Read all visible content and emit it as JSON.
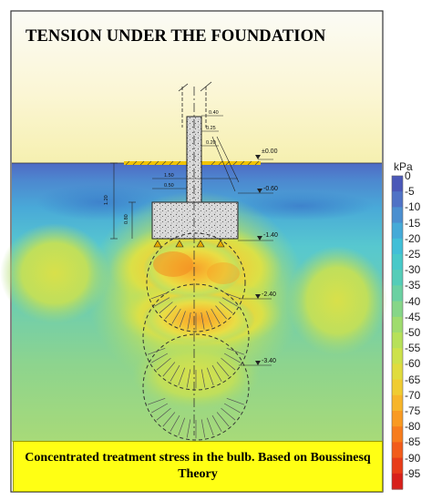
{
  "title": "TENSION UNDER THE FOUNDATION",
  "caption": "Concentrated treatment stress in the bulb. Based on Boussinesq Theory",
  "legend": {
    "unit": "kPa",
    "ticks": [
      "0",
      "-5",
      "-10",
      "-15",
      "-20",
      "-25",
      "-30",
      "-35",
      "-40",
      "-45",
      "-50",
      "-55",
      "-60",
      "-65",
      "-70",
      "-75",
      "-80",
      "-85",
      "-90",
      "-95"
    ],
    "colors": [
      "#4a58b8",
      "#4f72c6",
      "#4b8fd0",
      "#45aad8",
      "#41bfd7",
      "#47c9c9",
      "#55cdb8",
      "#6bd1a2",
      "#86d688",
      "#9fdc6e",
      "#b7e159",
      "#cde24a",
      "#e0dc3e",
      "#f0cc32",
      "#f7b52a",
      "#f99a22",
      "#f77c1d",
      "#f25c1b",
      "#e83c19",
      "#d8201a"
    ]
  },
  "levels": [
    "±0.00",
    "-0.60",
    "-1.40",
    "-2.40",
    "-3.40"
  ],
  "dimensions": [
    "0.40",
    "0.25",
    "0.20",
    "1.50",
    "0.50",
    "1.20",
    "0.80"
  ]
}
